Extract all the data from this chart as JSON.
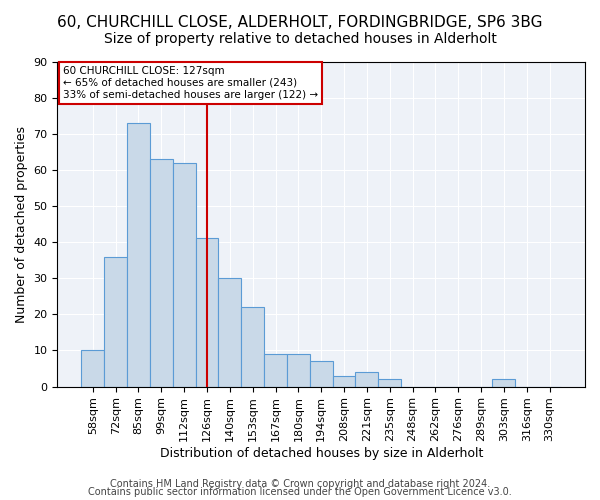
{
  "title1": "60, CHURCHILL CLOSE, ALDERHOLT, FORDINGBRIDGE, SP6 3BG",
  "title2": "Size of property relative to detached houses in Alderholt",
  "xlabel": "Distribution of detached houses by size in Alderholt",
  "ylabel": "Number of detached properties",
  "bin_labels": [
    "58sqm",
    "72sqm",
    "85sqm",
    "99sqm",
    "112sqm",
    "126sqm",
    "140sqm",
    "153sqm",
    "167sqm",
    "180sqm",
    "194sqm",
    "208sqm",
    "221sqm",
    "235sqm",
    "248sqm",
    "262sqm",
    "276sqm",
    "289sqm",
    "303sqm",
    "316sqm",
    "330sqm"
  ],
  "bar_heights": [
    10,
    36,
    73,
    63,
    62,
    41,
    30,
    22,
    9,
    9,
    7,
    3,
    4,
    2,
    0,
    0,
    0,
    0,
    2,
    0,
    0
  ],
  "bar_color": "#c9d9e8",
  "bar_edge_color": "#5b9bd5",
  "vline_x": 5,
  "vline_color": "#cc0000",
  "annotation_line1": "60 CHURCHILL CLOSE: 127sqm",
  "annotation_line2": "← 65% of detached houses are smaller (243)",
  "annotation_line3": "33% of semi-detached houses are larger (122) →",
  "annotation_box_color": "#cc0000",
  "ylim": [
    0,
    90
  ],
  "yticks": [
    0,
    10,
    20,
    30,
    40,
    50,
    60,
    70,
    80,
    90
  ],
  "footer1": "Contains HM Land Registry data © Crown copyright and database right 2024.",
  "footer2": "Contains public sector information licensed under the Open Government Licence v3.0.",
  "title1_fontsize": 11,
  "title2_fontsize": 10,
  "ylabel_fontsize": 9,
  "xlabel_fontsize": 9,
  "tick_fontsize": 8,
  "footer_fontsize": 7,
  "ann_fontsize": 7.5
}
